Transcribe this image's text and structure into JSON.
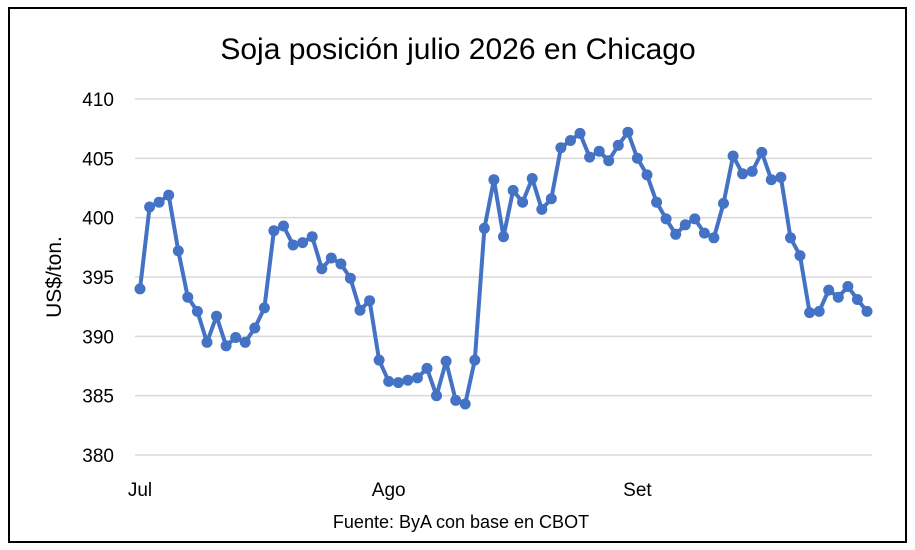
{
  "chart_data": {
    "type": "line",
    "title": "Soja posición julio 2026 en Chicago",
    "ylabel": "US$/ton.",
    "xlabel": "",
    "source": "Fuente: ByA con base en CBOT",
    "ylim": [
      380,
      410
    ],
    "yticks": [
      380,
      385,
      390,
      395,
      400,
      405,
      410
    ],
    "grid": true,
    "legend": "none",
    "x_ticks": [
      {
        "label": "Jul",
        "index": 0
      },
      {
        "label": "Ago",
        "index": 26
      },
      {
        "label": "Set",
        "index": 52
      }
    ],
    "series": [
      {
        "color": "#4472C4",
        "values": [
          394.0,
          400.9,
          401.3,
          401.9,
          397.2,
          393.3,
          392.1,
          389.5,
          391.7,
          389.2,
          389.9,
          389.5,
          390.7,
          392.4,
          398.9,
          399.3,
          397.7,
          397.9,
          398.4,
          395.7,
          396.6,
          396.1,
          394.9,
          392.2,
          393.0,
          388.0,
          386.2,
          386.1,
          386.3,
          386.5,
          387.3,
          385.0,
          387.9,
          384.6,
          384.3,
          388.0,
          399.1,
          403.2,
          398.4,
          402.3,
          401.3,
          403.3,
          400.7,
          401.6,
          405.9,
          406.5,
          407.1,
          405.1,
          405.6,
          404.8,
          406.1,
          407.2,
          405.0,
          403.6,
          401.3,
          399.9,
          398.6,
          399.4,
          399.9,
          398.7,
          398.3,
          401.2,
          405.2,
          403.7,
          403.9,
          405.5,
          403.2,
          403.4,
          398.3,
          396.8,
          392.0,
          392.1,
          393.9,
          393.3,
          394.2,
          393.1,
          392.1
        ]
      }
    ]
  }
}
